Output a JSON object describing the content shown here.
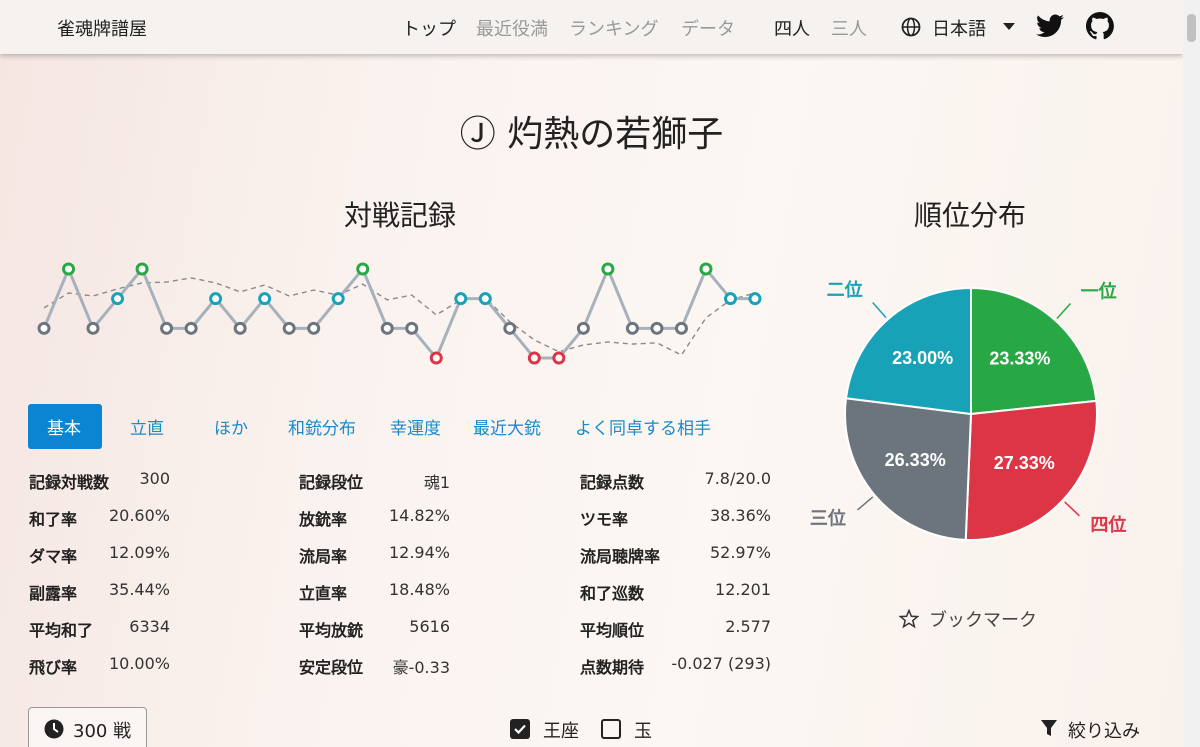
{
  "navbar": {
    "brand": "雀魂牌譜屋",
    "links": [
      "トップ",
      "最近役満",
      "ランキング",
      "データ"
    ],
    "modes": [
      "四人",
      "三人"
    ],
    "language": "日本語"
  },
  "title": "Ⓙ 灼熱の若獅子",
  "chart_data": [
    {
      "type": "line",
      "title": "対戦記録",
      "ylim": [
        1,
        4
      ],
      "y_reversed": true,
      "rank_colors": [
        "#28a745",
        "#17a2b8",
        "#6c757d",
        "#dc3545"
      ],
      "series": [
        {
          "color": "#a7b1bc",
          "markers": true,
          "values": [
            3,
            1,
            3,
            2,
            1,
            3,
            3,
            2,
            3,
            2,
            3,
            3,
            2,
            1,
            3,
            3,
            4,
            2,
            2,
            3,
            4,
            4,
            3,
            1,
            3,
            3,
            3,
            1,
            2,
            2
          ]
        },
        {
          "color": "#8a8a8a",
          "dashed": true,
          "markers": false,
          "values": [
            2.31,
            1.81,
            1.91,
            1.67,
            1.47,
            1.44,
            1.3,
            1.47,
            1.77,
            1.54,
            1.91,
            1.71,
            1.88,
            1.51,
            2.04,
            1.88,
            2.55,
            2.04,
            1.98,
            2.78,
            3.39,
            3.79,
            3.56,
            3.46,
            3.53,
            3.49,
            3.9,
            2.65,
            2.04,
            1.81
          ]
        }
      ]
    },
    {
      "type": "pie",
      "title": "順位分布",
      "categories": [
        "一位",
        "四位",
        "三位",
        "二位"
      ],
      "values": [
        23.33,
        27.33,
        26.33,
        23.0
      ],
      "value_labels": [
        "23.33%",
        "27.33%",
        "26.33%",
        "23.00%"
      ],
      "colors": [
        "#28a745",
        "#dc3545",
        "#6c757d",
        "#17a2b8"
      ]
    }
  ],
  "tabs": [
    "基本",
    "立直",
    "ほか",
    "和銃分布",
    "幸運度",
    "最近大銃",
    "よく同卓する相手"
  ],
  "stats": [
    [
      [
        "記録対戦数",
        "300"
      ],
      [
        "和了率",
        "20.60%"
      ],
      [
        "ダマ率",
        "12.09%"
      ],
      [
        "副露率",
        "35.44%"
      ],
      [
        "平均和了",
        "6334"
      ],
      [
        "飛び率",
        "10.00%"
      ]
    ],
    [
      [
        "記録段位",
        "魂1"
      ],
      [
        "放銃率",
        "14.82%"
      ],
      [
        "流局率",
        "12.94%"
      ],
      [
        "立直率",
        "18.48%"
      ],
      [
        "平均放銃",
        "5616"
      ],
      [
        "安定段位",
        "豪-0.33"
      ]
    ],
    [
      [
        "記録点数",
        "7.8/20.0"
      ],
      [
        "ツモ率",
        "38.36%"
      ],
      [
        "流局聴牌率",
        "52.97%"
      ],
      [
        "和了巡数",
        "12.201"
      ],
      [
        "平均順位",
        "2.577"
      ],
      [
        "点数期待",
        "-0.027 (293)"
      ]
    ]
  ],
  "bookmark": "ブックマーク",
  "games_button": "300 戦",
  "filters": [
    {
      "label": "王座",
      "checked": true
    },
    {
      "label": "玉",
      "checked": false
    }
  ],
  "filter_button": "絞り込み"
}
